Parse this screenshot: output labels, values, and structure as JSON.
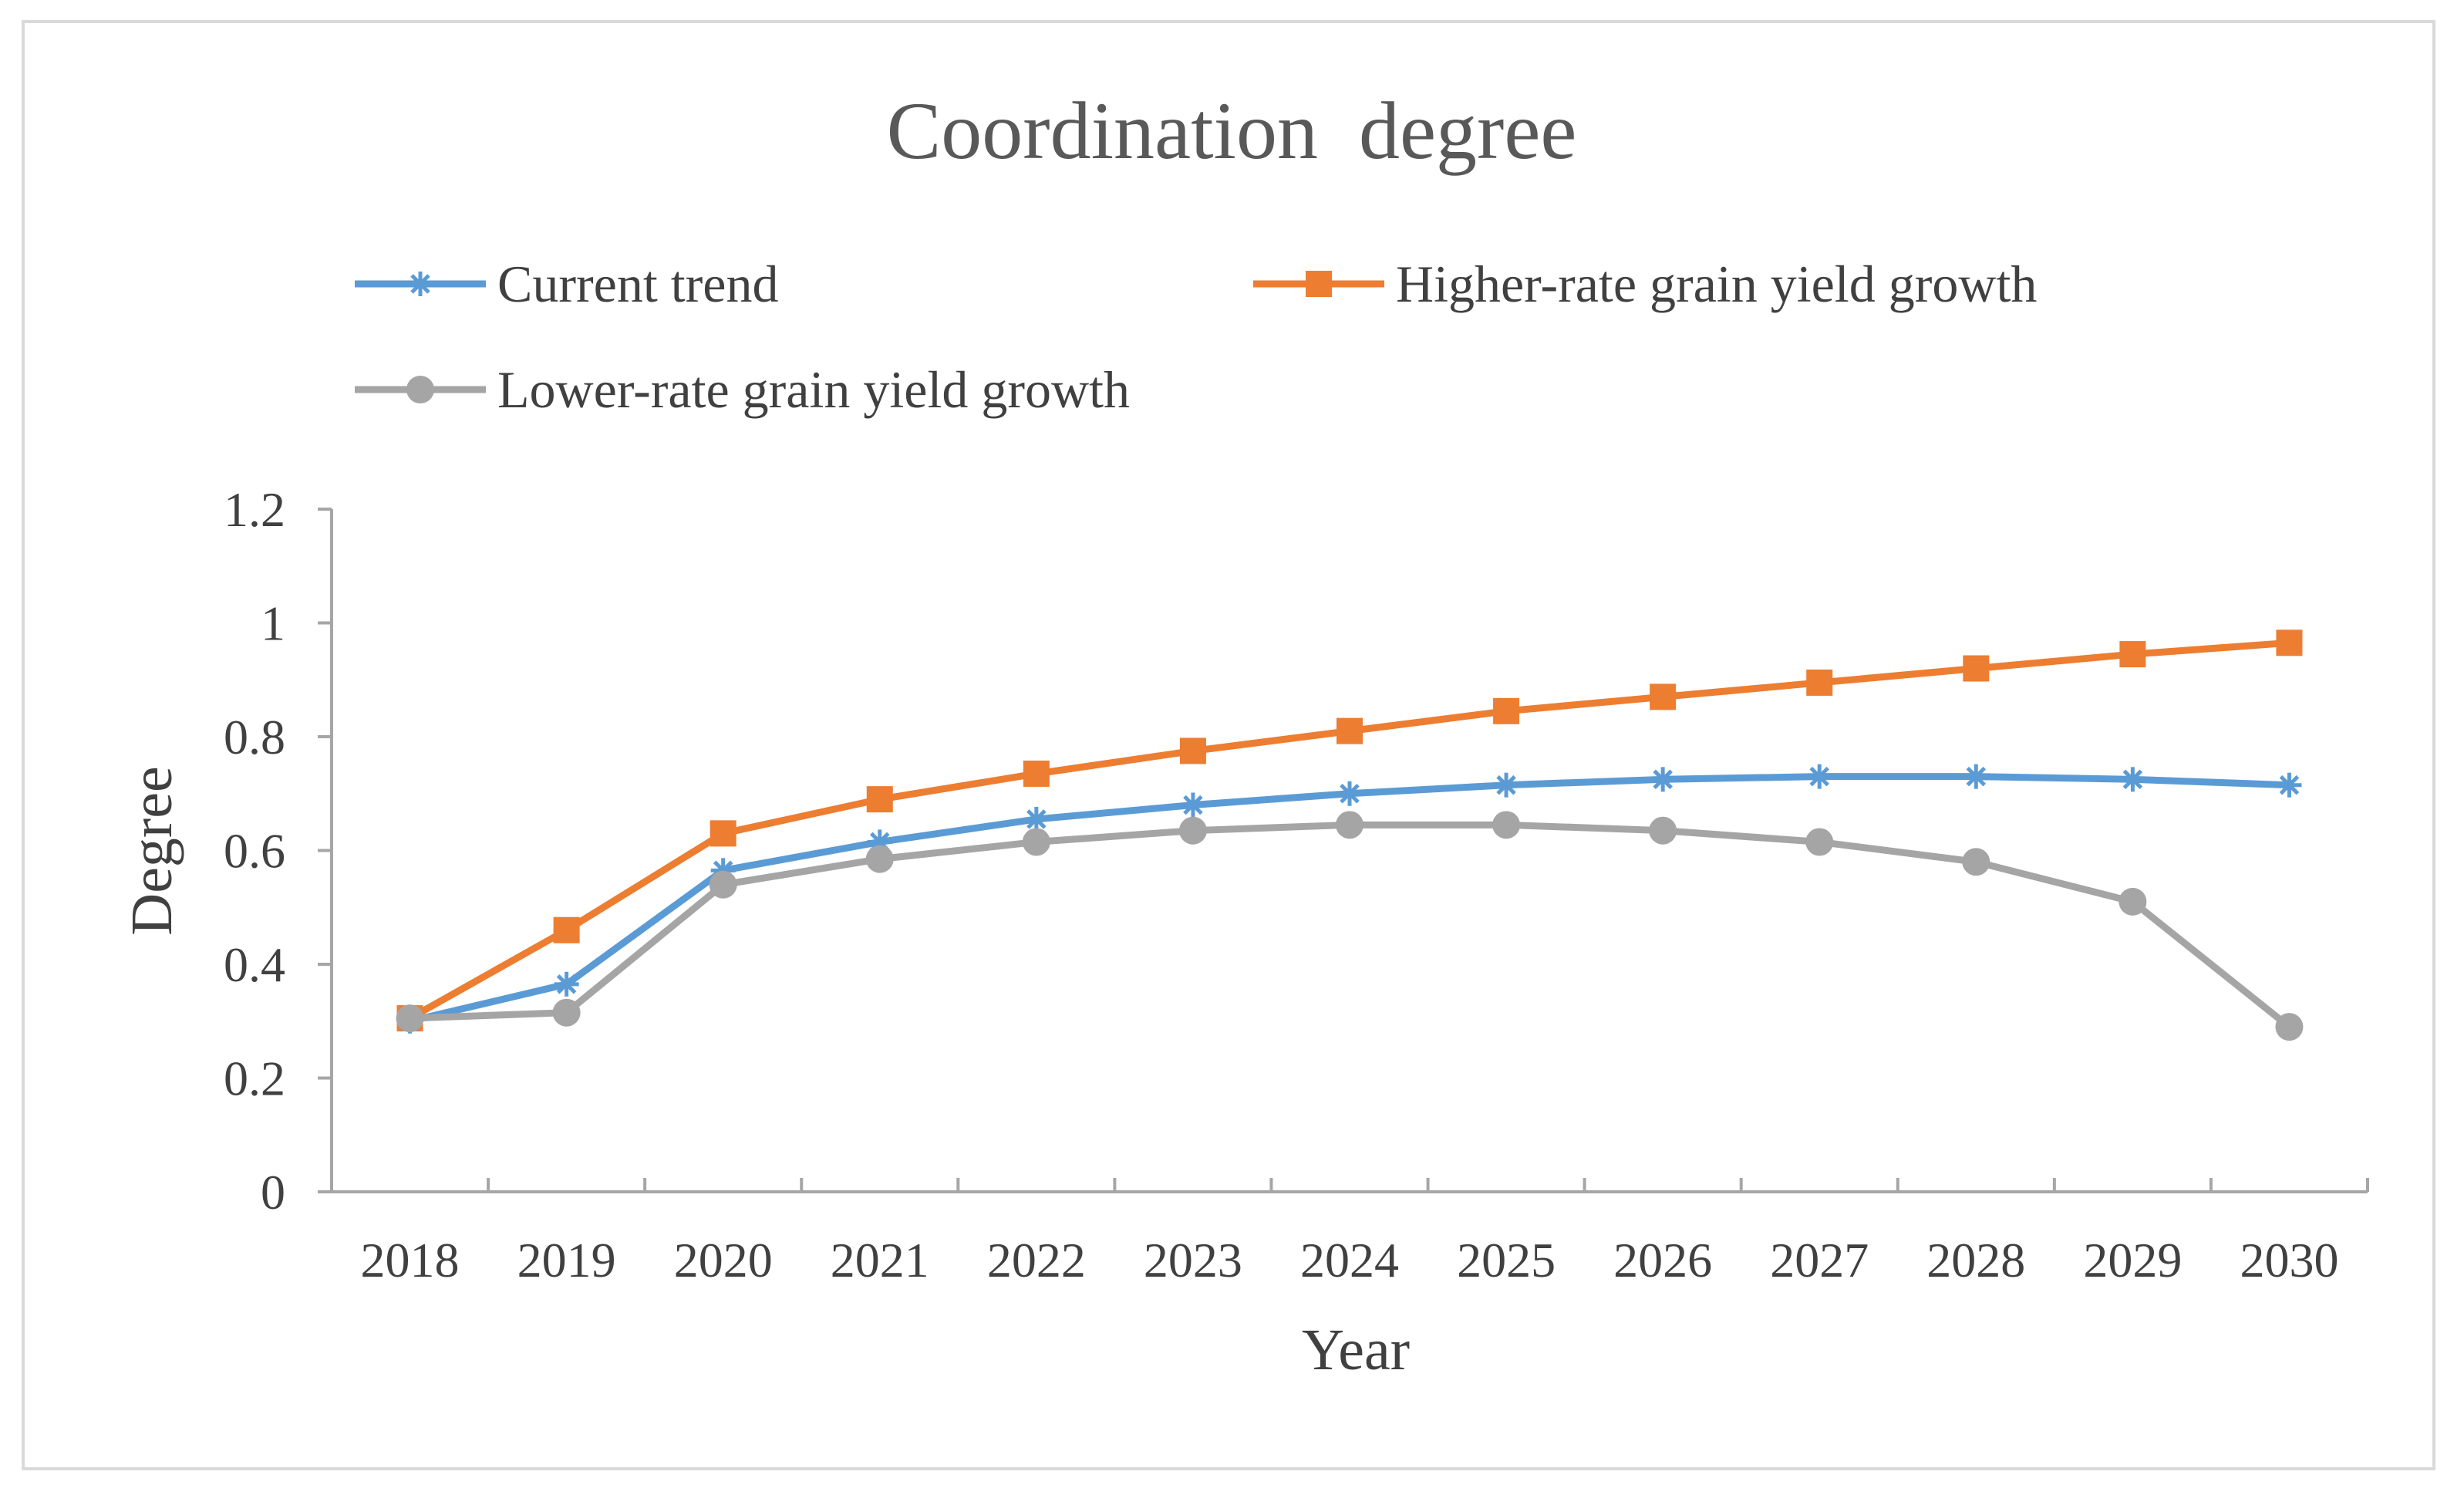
{
  "chart_data": {
    "type": "line",
    "title": "Coordination  degree",
    "xlabel": "Year",
    "ylabel": "Degree",
    "categories": [
      "2018",
      "2019",
      "2020",
      "2021",
      "2022",
      "2023",
      "2024",
      "2025",
      "2026",
      "2027",
      "2028",
      "2029",
      "2030"
    ],
    "yticks": [
      "0",
      "0.2",
      "0.4",
      "0.6",
      "0.8",
      "1",
      "1.2"
    ],
    "ylim": [
      0,
      1.2
    ],
    "grid": false,
    "legend_position": "top",
    "series": [
      {
        "name": "Current trend",
        "color": "#5b9bd5",
        "marker": "asterisk",
        "values": [
          0.3,
          0.365,
          0.565,
          0.615,
          0.655,
          0.68,
          0.7,
          0.715,
          0.725,
          0.73,
          0.73,
          0.725,
          0.715
        ]
      },
      {
        "name": "Higher-rate grain yield growth",
        "color": "#ed7d31",
        "marker": "square",
        "values": [
          0.305,
          0.46,
          0.63,
          0.69,
          0.735,
          0.775,
          0.81,
          0.845,
          0.87,
          0.895,
          0.92,
          0.945,
          0.965
        ]
      },
      {
        "name": "Lower-rate grain yield growth",
        "color": "#a5a5a5",
        "marker": "circle",
        "values": [
          0.305,
          0.315,
          0.54,
          0.585,
          0.615,
          0.635,
          0.645,
          0.645,
          0.635,
          0.615,
          0.58,
          0.51,
          0.29
        ]
      }
    ]
  }
}
